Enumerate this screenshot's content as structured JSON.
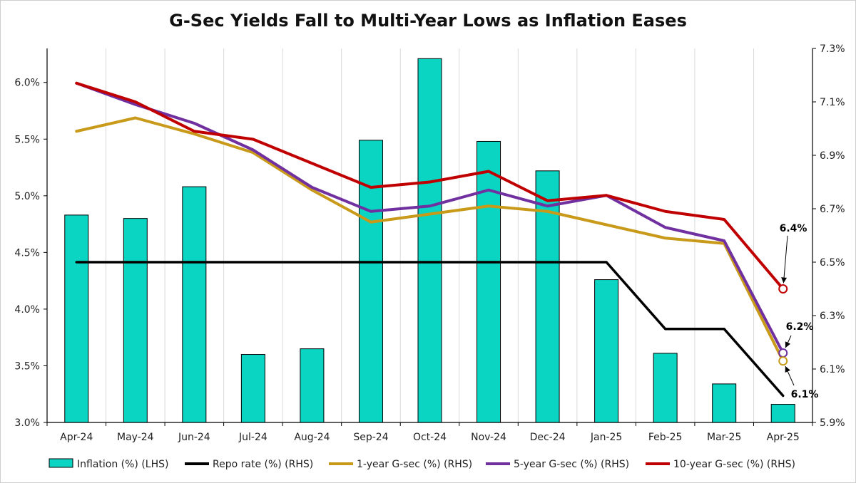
{
  "chart_data": {
    "type": "bar",
    "title": "G-Sec Yields Fall to Multi-Year Lows as Inflation Eases",
    "categories": [
      "Apr-24",
      "May-24",
      "Jun-24",
      "Jul-24",
      "Aug-24",
      "Sep-24",
      "Oct-24",
      "Nov-24",
      "Dec-24",
      "Jan-25",
      "Feb-25",
      "Mar-25",
      "Apr-25"
    ],
    "left_axis": {
      "ylim": [
        3.0,
        6.3
      ],
      "ticks": [
        3.0,
        3.5,
        4.0,
        4.5,
        5.0,
        5.5,
        6.0
      ],
      "tick_labels": [
        "3.0%",
        "3.5%",
        "4.0%",
        "4.5%",
        "5.0%",
        "5.5%",
        "6.0%"
      ]
    },
    "right_axis": {
      "ylim": [
        5.9,
        7.3
      ],
      "ticks": [
        5.9,
        6.1,
        6.3,
        6.5,
        6.7,
        6.9,
        7.1,
        7.3
      ],
      "tick_labels": [
        "5.9%",
        "6.1%",
        "6.3%",
        "6.5%",
        "6.7%",
        "6.9%",
        "7.1%",
        "7.3%"
      ]
    },
    "bar_series": {
      "name": "Inflation (%) (LHS)",
      "color": "#0ad4c2",
      "values": [
        4.83,
        4.8,
        5.08,
        3.6,
        3.65,
        5.49,
        6.21,
        5.48,
        5.22,
        4.26,
        3.61,
        3.34,
        3.16
      ]
    },
    "series": [
      {
        "name": "Repo rate (%) (RHS)",
        "axis": "right",
        "color": "#000000",
        "values": [
          6.5,
          6.5,
          6.5,
          6.5,
          6.5,
          6.5,
          6.5,
          6.5,
          6.5,
          6.5,
          6.25,
          6.25,
          6.0
        ]
      },
      {
        "name": "1-year G-sec (%) (RHS)",
        "axis": "right",
        "color": "#c99a1a",
        "values": [
          6.99,
          7.04,
          6.98,
          6.91,
          6.77,
          6.65,
          6.68,
          6.71,
          6.69,
          6.64,
          6.59,
          6.57,
          6.13
        ]
      },
      {
        "name": "5-year G-sec (%) (RHS)",
        "axis": "right",
        "color": "#7030a0",
        "values": [
          7.17,
          7.09,
          7.02,
          6.92,
          6.78,
          6.69,
          6.71,
          6.77,
          6.71,
          6.75,
          6.63,
          6.58,
          6.16
        ]
      },
      {
        "name": "10-year G-sec (%) (RHS)",
        "axis": "right",
        "color": "#c00000",
        "values": [
          7.17,
          7.1,
          6.99,
          6.96,
          6.87,
          6.78,
          6.8,
          6.84,
          6.73,
          6.75,
          6.69,
          6.66,
          6.4
        ]
      }
    ],
    "annotations": [
      {
        "label": "6.4%",
        "series": "10-year G-sec (%) (RHS)",
        "category": "Apr-25"
      },
      {
        "label": "6.2%",
        "series": "5-year G-sec (%) (RHS)",
        "category": "Apr-25"
      },
      {
        "label": "6.1%",
        "series": "1-year G-sec (%) (RHS)",
        "category": "Apr-25"
      }
    ],
    "legend": {
      "placement": "bottom"
    },
    "grid": {
      "vertical": true,
      "horizontal": false
    }
  }
}
